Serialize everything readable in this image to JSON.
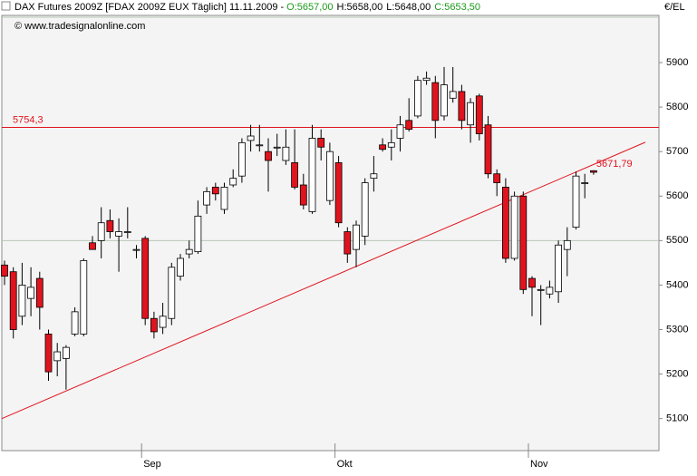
{
  "chart_data": {
    "type": "candlestick",
    "title": "DAX Futures 2009Z [FDAX 2009Z EUX  Täglich] 11.11.2009 -",
    "ohlc_labels": [
      "O:5657,00",
      "H:5658,00",
      "L:5648,00",
      "C:5653,50"
    ],
    "ohlc_colors": [
      "#1a9a1a",
      "#000000",
      "#000000",
      "#1a9a1a"
    ],
    "subtitle": "© www.tradesignalonline.com",
    "unit_label": "€/EL",
    "categories": [
      null,
      null,
      null,
      null,
      null,
      null,
      null,
      null,
      null,
      null,
      null,
      null,
      null,
      null,
      null,
      null,
      "Sep",
      null,
      null,
      null,
      null,
      null,
      null,
      null,
      null,
      null,
      null,
      null,
      null,
      null,
      null,
      null,
      null,
      null,
      null,
      null,
      null,
      null,
      "Okt",
      null,
      null,
      null,
      null,
      null,
      null,
      null,
      null,
      null,
      null,
      null,
      null,
      null,
      null,
      null,
      null,
      null,
      null,
      null,
      null,
      null,
      "Nov",
      null,
      null,
      null,
      null,
      null,
      null,
      null
    ],
    "open": [
      5445,
      5430,
      5330,
      5370,
      5415,
      5290,
      5230,
      5235,
      5290,
      5290,
      5495,
      5500,
      5545,
      5510,
      5520,
      5480,
      5505,
      5325,
      5305,
      5325,
      5420,
      5470,
      5475,
      5580,
      5620,
      5570,
      5625,
      5645,
      5725,
      5715,
      5700,
      5710,
      5680,
      5675,
      5625,
      5565,
      5730,
      5590,
      5675,
      5520,
      5480,
      5510,
      5640,
      5715,
      5710,
      5730,
      5770,
      5780,
      5860,
      5855,
      5780,
      5820,
      5835,
      5760,
      5825,
      5760,
      5650,
      5620,
      5460,
      5600,
      5415,
      5390,
      5380,
      5385,
      5480,
      5530,
      5630,
      5657
    ],
    "high": [
      5455,
      5440,
      5450,
      5440,
      5430,
      5300,
      5270,
      5265,
      5350,
      5460,
      5510,
      5575,
      5570,
      5550,
      5575,
      5490,
      5510,
      5340,
      5360,
      5450,
      5470,
      5500,
      5590,
      5620,
      5630,
      5630,
      5660,
      5730,
      5760,
      5760,
      5730,
      5740,
      5750,
      5750,
      5650,
      5760,
      5750,
      5720,
      5690,
      5530,
      5545,
      5640,
      5690,
      5730,
      5750,
      5780,
      5820,
      5870,
      5880,
      5870,
      5890,
      5890,
      5850,
      5820,
      5830,
      5780,
      5660,
      5640,
      5610,
      5610,
      5420,
      5400,
      5410,
      5500,
      5530,
      5655,
      5650,
      5658
    ],
    "low": [
      5400,
      5280,
      5310,
      5330,
      5300,
      5185,
      5195,
      5165,
      5285,
      5285,
      5480,
      5460,
      5505,
      5430,
      5505,
      5460,
      5310,
      5280,
      5290,
      5310,
      5410,
      5460,
      5470,
      5560,
      5590,
      5560,
      5620,
      5630,
      5700,
      5700,
      5610,
      5690,
      5670,
      5615,
      5570,
      5560,
      5680,
      5580,
      5530,
      5450,
      5440,
      5490,
      5610,
      5700,
      5680,
      5700,
      5745,
      5775,
      5850,
      5730,
      5770,
      5810,
      5750,
      5720,
      5725,
      5640,
      5600,
      5450,
      5455,
      5380,
      5330,
      5310,
      5370,
      5360,
      5420,
      5525,
      5595,
      5648
    ],
    "close": [
      5420,
      5300,
      5400,
      5395,
      5350,
      5205,
      5250,
      5260,
      5340,
      5455,
      5480,
      5540,
      5520,
      5520,
      5520,
      5480,
      5325,
      5295,
      5330,
      5440,
      5460,
      5480,
      5555,
      5610,
      5605,
      5620,
      5640,
      5720,
      5735,
      5715,
      5680,
      5710,
      5710,
      5620,
      5580,
      5730,
      5710,
      5700,
      5540,
      5470,
      5535,
      5630,
      5650,
      5705,
      5720,
      5760,
      5750,
      5860,
      5865,
      5770,
      5850,
      5835,
      5770,
      5810,
      5740,
      5650,
      5630,
      5460,
      5600,
      5390,
      5395,
      5390,
      5395,
      5490,
      5500,
      5645,
      5630,
      5653.5
    ],
    "up_color": "#ffffff",
    "down_color": "#e0141e",
    "ylim": [
      5028,
      6006
    ],
    "yticks": [
      5100,
      5200,
      5300,
      5400,
      5500,
      5600,
      5700,
      5800,
      5900
    ],
    "reference_line": 5500,
    "resistance": {
      "value": 5754.3,
      "label": "5754,3",
      "color": "#e0141e"
    },
    "trendline": {
      "start": 5100,
      "end": 5721,
      "label": {
        "value": 5671.79,
        "label": "5671,79"
      },
      "color": "#e0141e"
    }
  }
}
